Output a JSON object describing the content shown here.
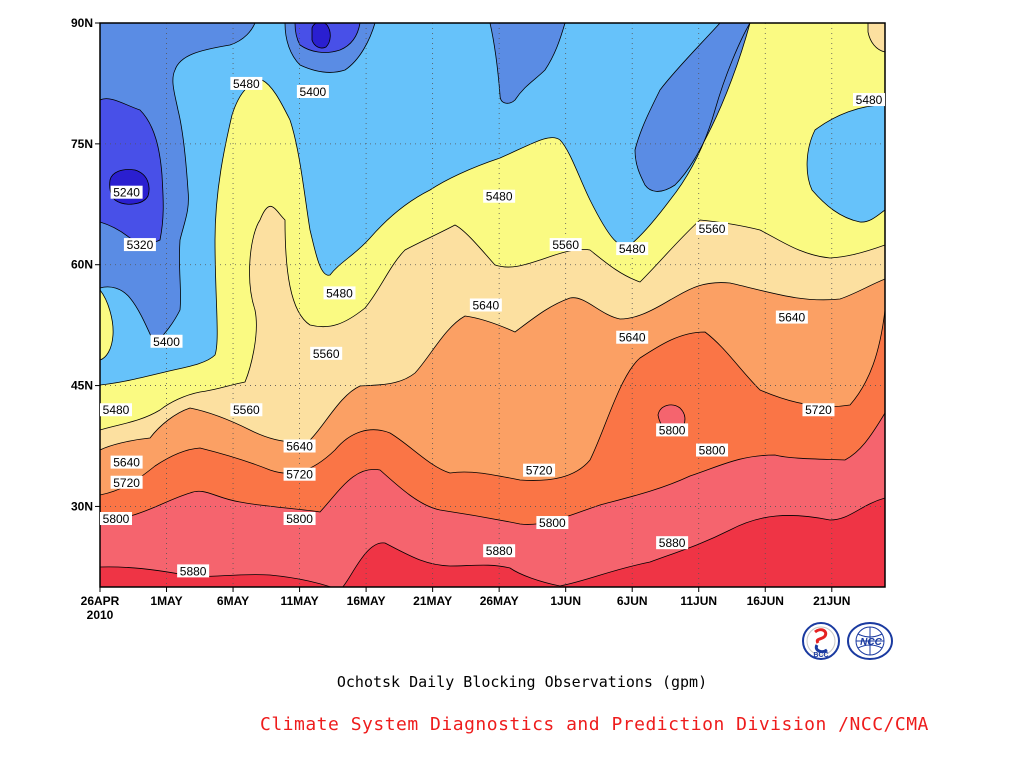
{
  "chart_data": {
    "type": "heatmap",
    "title": "Ochotsk Daily Blocking Observations (gpm)",
    "x_ticks": [
      "26APR",
      "1MAY",
      "6MAY",
      "11MAY",
      "16MAY",
      "21MAY",
      "26MAY",
      "1JUN",
      "6JUN",
      "11JUN",
      "16JUN",
      "21JUN"
    ],
    "x_year_label": "2010",
    "y_ticks": [
      "90N",
      "75N",
      "60N",
      "45N",
      "30N"
    ],
    "xlim": [
      "2010-04-26",
      "2010-06-24"
    ],
    "ylim": [
      20,
      90
    ],
    "grid": true,
    "contour_levels": [
      5240,
      5320,
      5400,
      5480,
      5560,
      5640,
      5720,
      5800,
      5880
    ],
    "fill_colors": [
      "#2a1fd0",
      "#4850e8",
      "#5a8ce4",
      "#66c2fa",
      "#fafa82",
      "#fce0a0",
      "#fba064",
      "#fa7546",
      "#f5646e",
      "#ef3445"
    ],
    "contour_labels": [
      {
        "value": "5240",
        "date": "2010-04-28",
        "lat": 69
      },
      {
        "value": "5320",
        "date": "2010-04-29",
        "lat": 62.5
      },
      {
        "value": "5400",
        "date": "2010-05-01",
        "lat": 50.5
      },
      {
        "value": "5480",
        "date": "2010-05-07",
        "lat": 82.5
      },
      {
        "value": "5400",
        "date": "2010-05-12",
        "lat": 81.5
      },
      {
        "value": "5480",
        "date": "2010-05-26",
        "lat": 68.5
      },
      {
        "value": "5480",
        "date": "2010-06-23",
        "lat": 80.5
      },
      {
        "value": "5560",
        "date": "2010-06-11",
        "lat": 64.5
      },
      {
        "value": "5480",
        "date": "2010-06-05",
        "lat": 62
      },
      {
        "value": "5560",
        "date": "2010-05-31",
        "lat": 62.5
      },
      {
        "value": "5480",
        "date": "2010-05-14",
        "lat": 56.5
      },
      {
        "value": "5640",
        "date": "2010-05-25",
        "lat": 55
      },
      {
        "value": "5640",
        "date": "2010-06-05",
        "lat": 51
      },
      {
        "value": "5640",
        "date": "2010-06-17",
        "lat": 53.5
      },
      {
        "value": "5560",
        "date": "2010-05-13",
        "lat": 49
      },
      {
        "value": "5480",
        "date": "2010-04-26",
        "lat": 42
      },
      {
        "value": "5560",
        "date": "2010-05-07",
        "lat": 42
      },
      {
        "value": "5720",
        "date": "2010-06-19",
        "lat": 42
      },
      {
        "value": "5800",
        "date": "2010-06-08",
        "lat": 39.5
      },
      {
        "value": "5640",
        "date": "2010-05-11",
        "lat": 37.5
      },
      {
        "value": "5640",
        "date": "2010-04-28",
        "lat": 35.5
      },
      {
        "value": "5800",
        "date": "2010-06-11",
        "lat": 37
      },
      {
        "value": "5720",
        "date": "2010-05-11",
        "lat": 34
      },
      {
        "value": "5720",
        "date": "2010-05-29",
        "lat": 34.5
      },
      {
        "value": "5720",
        "date": "2010-04-28",
        "lat": 33
      },
      {
        "value": "5800",
        "date": "2010-04-26",
        "lat": 28.5
      },
      {
        "value": "5800",
        "date": "2010-05-11",
        "lat": 28.5
      },
      {
        "value": "5800",
        "date": "2010-05-30",
        "lat": 28
      },
      {
        "value": "5880",
        "date": "2010-05-26",
        "lat": 24.5
      },
      {
        "value": "5880",
        "date": "2010-06-08",
        "lat": 25.5
      },
      {
        "value": "5880",
        "date": "2010-05-03",
        "lat": 22
      }
    ]
  },
  "caption": "Ochotsk Daily Blocking Observations (gpm)",
  "credit": "Climate System Diagnostics and Prediction Division /NCC/CMA",
  "logos": {
    "bcc": "BCC",
    "ncc": "NCC"
  }
}
